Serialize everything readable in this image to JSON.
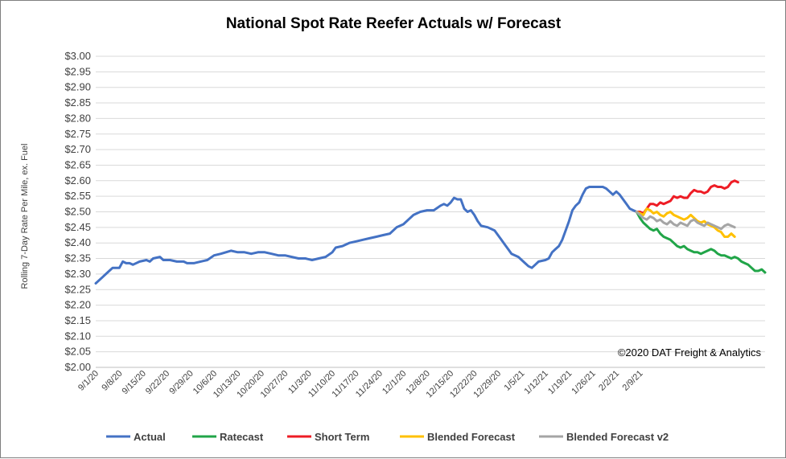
{
  "chart_data": {
    "type": "line",
    "title": "National Spot Rate Reefer Actuals w/ Forecast",
    "ylabel": "Rolling 7-Day Rate Per Mile, ex. Fuel",
    "xlabel": "",
    "ylim": [
      2.0,
      3.0
    ],
    "yticks": [
      "$3.00",
      "$2.95",
      "$2.90",
      "$2.85",
      "$2.80",
      "$2.75",
      "$2.70",
      "$2.65",
      "$2.60",
      "$2.55",
      "$2.50",
      "$2.45",
      "$2.40",
      "$2.35",
      "$2.30",
      "$2.25",
      "$2.20",
      "$2.15",
      "$2.10",
      "$2.05",
      "$2.00"
    ],
    "xticks": [
      "9/1/20",
      "9/8/20",
      "9/15/20",
      "9/22/20",
      "9/29/20",
      "10/6/20",
      "10/13/20",
      "10/20/20",
      "10/27/20",
      "11/3/20",
      "11/10/20",
      "11/17/20",
      "11/24/20",
      "12/1/20",
      "12/8/20",
      "12/15/20",
      "12/22/20",
      "12/29/20",
      "1/5/21",
      "1/12/21",
      "1/19/21",
      "1/26/21",
      "2/2/21",
      "2/9/21"
    ],
    "annotation": "©2020 DAT Freight & Analytics",
    "legend_position": "bottom",
    "grid": true,
    "series": [
      {
        "name": "Actual",
        "color": "#4472C4",
        "points": [
          [
            0,
            2.27
          ],
          [
            2,
            2.29
          ],
          [
            4,
            2.31
          ],
          [
            5,
            2.32
          ],
          [
            7,
            2.32
          ],
          [
            8,
            2.34
          ],
          [
            9,
            2.335
          ],
          [
            10,
            2.335
          ],
          [
            11,
            2.33
          ],
          [
            13,
            2.34
          ],
          [
            15,
            2.345
          ],
          [
            16,
            2.34
          ],
          [
            17,
            2.35
          ],
          [
            19,
            2.355
          ],
          [
            20,
            2.345
          ],
          [
            22,
            2.345
          ],
          [
            24,
            2.34
          ],
          [
            26,
            2.34
          ],
          [
            27,
            2.335
          ],
          [
            29,
            2.335
          ],
          [
            31,
            2.34
          ],
          [
            33,
            2.345
          ],
          [
            35,
            2.36
          ],
          [
            37,
            2.365
          ],
          [
            40,
            2.375
          ],
          [
            42,
            2.37
          ],
          [
            44,
            2.37
          ],
          [
            46,
            2.365
          ],
          [
            48,
            2.37
          ],
          [
            50,
            2.37
          ],
          [
            52,
            2.365
          ],
          [
            54,
            2.36
          ],
          [
            56,
            2.36
          ],
          [
            58,
            2.355
          ],
          [
            60,
            2.35
          ],
          [
            62,
            2.35
          ],
          [
            64,
            2.345
          ],
          [
            66,
            2.35
          ],
          [
            68,
            2.355
          ],
          [
            70,
            2.37
          ],
          [
            71,
            2.385
          ],
          [
            73,
            2.39
          ],
          [
            75,
            2.4
          ],
          [
            77,
            2.405
          ],
          [
            79,
            2.41
          ],
          [
            81,
            2.415
          ],
          [
            83,
            2.42
          ],
          [
            85,
            2.425
          ],
          [
            87,
            2.43
          ],
          [
            89,
            2.45
          ],
          [
            91,
            2.46
          ],
          [
            92,
            2.47
          ],
          [
            94,
            2.49
          ],
          [
            96,
            2.5
          ],
          [
            98,
            2.505
          ],
          [
            100,
            2.505
          ],
          [
            102,
            2.52
          ],
          [
            103,
            2.525
          ],
          [
            104,
            2.52
          ],
          [
            105,
            2.53
          ],
          [
            106,
            2.545
          ],
          [
            107,
            2.54
          ],
          [
            108,
            2.54
          ],
          [
            109,
            2.51
          ],
          [
            110,
            2.5
          ],
          [
            111,
            2.505
          ],
          [
            112,
            2.49
          ],
          [
            113,
            2.47
          ],
          [
            114,
            2.455
          ],
          [
            116,
            2.45
          ],
          [
            117,
            2.445
          ],
          [
            118,
            2.44
          ],
          [
            119,
            2.425
          ],
          [
            120,
            2.41
          ],
          [
            121,
            2.395
          ],
          [
            122,
            2.38
          ],
          [
            123,
            2.365
          ],
          [
            125,
            2.355
          ],
          [
            126,
            2.345
          ],
          [
            127,
            2.335
          ],
          [
            128,
            2.325
          ],
          [
            129,
            2.32
          ],
          [
            130,
            2.33
          ],
          [
            131,
            2.34
          ],
          [
            133,
            2.345
          ],
          [
            134,
            2.35
          ],
          [
            135,
            2.37
          ],
          [
            136,
            2.38
          ],
          [
            137,
            2.39
          ],
          [
            138,
            2.41
          ],
          [
            139,
            2.44
          ],
          [
            140,
            2.47
          ],
          [
            141,
            2.505
          ],
          [
            142,
            2.52
          ],
          [
            143,
            2.53
          ],
          [
            144,
            2.555
          ],
          [
            145,
            2.575
          ],
          [
            146,
            2.58
          ],
          [
            148,
            2.58
          ],
          [
            150,
            2.58
          ],
          [
            151,
            2.575
          ],
          [
            152,
            2.565
          ],
          [
            153,
            2.555
          ],
          [
            154,
            2.565
          ],
          [
            155,
            2.555
          ],
          [
            156,
            2.54
          ],
          [
            157,
            2.525
          ],
          [
            158,
            2.51
          ],
          [
            159,
            2.505
          ],
          [
            160,
            2.5
          ]
        ]
      },
      {
        "name": "Ratecast",
        "color": "#21A548",
        "points": [
          [
            160,
            2.5
          ],
          [
            161,
            2.48
          ],
          [
            162,
            2.465
          ],
          [
            163,
            2.455
          ],
          [
            164,
            2.445
          ],
          [
            165,
            2.44
          ],
          [
            166,
            2.445
          ],
          [
            167,
            2.43
          ],
          [
            168,
            2.42
          ],
          [
            169,
            2.415
          ],
          [
            170,
            2.41
          ],
          [
            171,
            2.4
          ],
          [
            172,
            2.39
          ],
          [
            173,
            2.385
          ],
          [
            174,
            2.39
          ],
          [
            175,
            2.38
          ],
          [
            176,
            2.375
          ],
          [
            177,
            2.37
          ],
          [
            178,
            2.37
          ],
          [
            179,
            2.365
          ],
          [
            180,
            2.37
          ],
          [
            181,
            2.375
          ],
          [
            182,
            2.38
          ],
          [
            183,
            2.375
          ],
          [
            184,
            2.365
          ],
          [
            185,
            2.36
          ],
          [
            186,
            2.36
          ],
          [
            187,
            2.355
          ],
          [
            188,
            2.35
          ],
          [
            189,
            2.355
          ],
          [
            190,
            2.35
          ],
          [
            191,
            2.34
          ],
          [
            192,
            2.335
          ],
          [
            193,
            2.33
          ],
          [
            194,
            2.32
          ],
          [
            195,
            2.31
          ],
          [
            196,
            2.31
          ],
          [
            197,
            2.315
          ],
          [
            198,
            2.305
          ]
        ]
      },
      {
        "name": "Short Term",
        "color": "#EE1C25",
        "points": [
          [
            160,
            2.5
          ],
          [
            161,
            2.5
          ],
          [
            162,
            2.495
          ],
          [
            163,
            2.51
          ],
          [
            164,
            2.525
          ],
          [
            165,
            2.525
          ],
          [
            166,
            2.52
          ],
          [
            167,
            2.53
          ],
          [
            168,
            2.525
          ],
          [
            169,
            2.53
          ],
          [
            170,
            2.535
          ],
          [
            171,
            2.55
          ],
          [
            172,
            2.545
          ],
          [
            173,
            2.55
          ],
          [
            174,
            2.545
          ],
          [
            175,
            2.545
          ],
          [
            176,
            2.56
          ],
          [
            177,
            2.57
          ],
          [
            178,
            2.565
          ],
          [
            179,
            2.565
          ],
          [
            180,
            2.56
          ],
          [
            181,
            2.565
          ],
          [
            182,
            2.58
          ],
          [
            183,
            2.585
          ],
          [
            184,
            2.58
          ],
          [
            185,
            2.58
          ],
          [
            186,
            2.575
          ],
          [
            187,
            2.58
          ],
          [
            188,
            2.595
          ],
          [
            189,
            2.6
          ],
          [
            190,
            2.595
          ]
        ]
      },
      {
        "name": "Blended Forecast",
        "color": "#FFC000",
        "points": [
          [
            160,
            2.5
          ],
          [
            161,
            2.495
          ],
          [
            162,
            2.49
          ],
          [
            163,
            2.51
          ],
          [
            164,
            2.505
          ],
          [
            165,
            2.495
          ],
          [
            166,
            2.5
          ],
          [
            167,
            2.49
          ],
          [
            168,
            2.485
          ],
          [
            169,
            2.495
          ],
          [
            170,
            2.5
          ],
          [
            171,
            2.49
          ],
          [
            172,
            2.485
          ],
          [
            173,
            2.48
          ],
          [
            174,
            2.475
          ],
          [
            175,
            2.48
          ],
          [
            176,
            2.49
          ],
          [
            177,
            2.48
          ],
          [
            178,
            2.47
          ],
          [
            179,
            2.465
          ],
          [
            180,
            2.47
          ],
          [
            181,
            2.46
          ],
          [
            182,
            2.455
          ],
          [
            183,
            2.45
          ],
          [
            184,
            2.44
          ],
          [
            185,
            2.435
          ],
          [
            186,
            2.42
          ],
          [
            187,
            2.42
          ],
          [
            188,
            2.43
          ],
          [
            189,
            2.42
          ]
        ]
      },
      {
        "name": "Blended Forecast v2",
        "color": "#A5A5A5",
        "points": [
          [
            160,
            2.5
          ],
          [
            161,
            2.49
          ],
          [
            162,
            2.48
          ],
          [
            163,
            2.475
          ],
          [
            164,
            2.485
          ],
          [
            165,
            2.48
          ],
          [
            166,
            2.47
          ],
          [
            167,
            2.475
          ],
          [
            168,
            2.465
          ],
          [
            169,
            2.46
          ],
          [
            170,
            2.47
          ],
          [
            171,
            2.46
          ],
          [
            172,
            2.455
          ],
          [
            173,
            2.465
          ],
          [
            174,
            2.46
          ],
          [
            175,
            2.455
          ],
          [
            176,
            2.47
          ],
          [
            177,
            2.475
          ],
          [
            178,
            2.465
          ],
          [
            179,
            2.46
          ],
          [
            180,
            2.455
          ],
          [
            181,
            2.465
          ],
          [
            182,
            2.46
          ],
          [
            183,
            2.455
          ],
          [
            184,
            2.45
          ],
          [
            185,
            2.445
          ],
          [
            186,
            2.455
          ],
          [
            187,
            2.46
          ],
          [
            188,
            2.455
          ],
          [
            189,
            2.45
          ]
        ]
      }
    ]
  }
}
